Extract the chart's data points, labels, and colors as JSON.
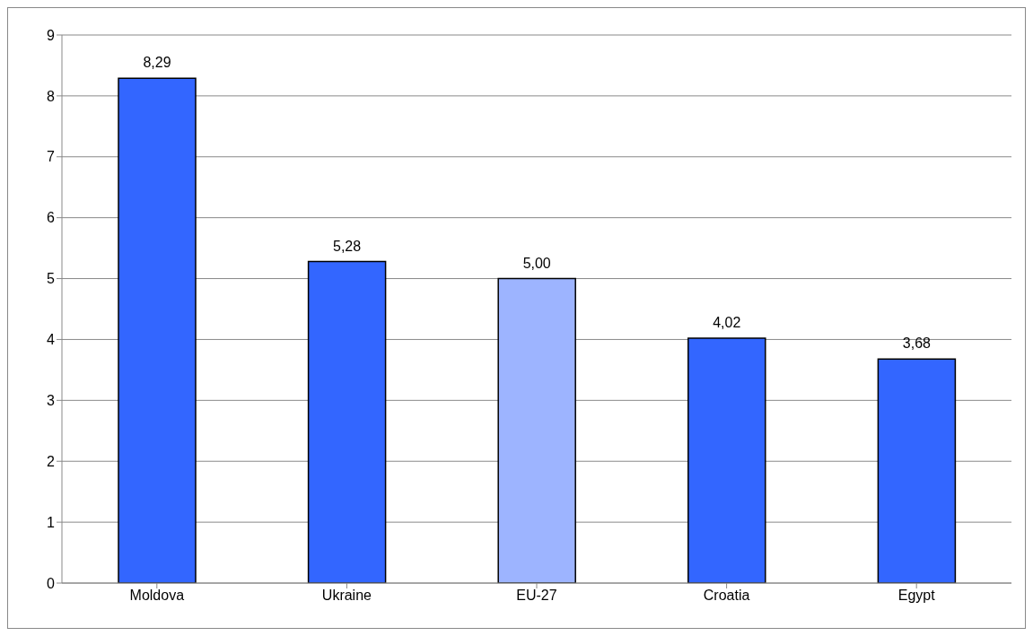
{
  "chart_data": {
    "type": "bar",
    "categories": [
      "Moldova",
      "Ukraine",
      "EU-27",
      "Croatia",
      "Egypt"
    ],
    "values": [
      8.29,
      5.28,
      5.0,
      4.02,
      3.68
    ],
    "colors": [
      "#3366ff",
      "#3366ff",
      "#9db4ff",
      "#3366ff",
      "#3366ff"
    ],
    "value_labels": [
      "8,29",
      "5,28",
      "5,00",
      "4,02",
      "3,68"
    ],
    "ylim": [
      0,
      9
    ],
    "yticks": [
      0,
      1,
      2,
      3,
      4,
      5,
      6,
      7,
      8,
      9
    ],
    "grid": "y",
    "legend": false
  }
}
